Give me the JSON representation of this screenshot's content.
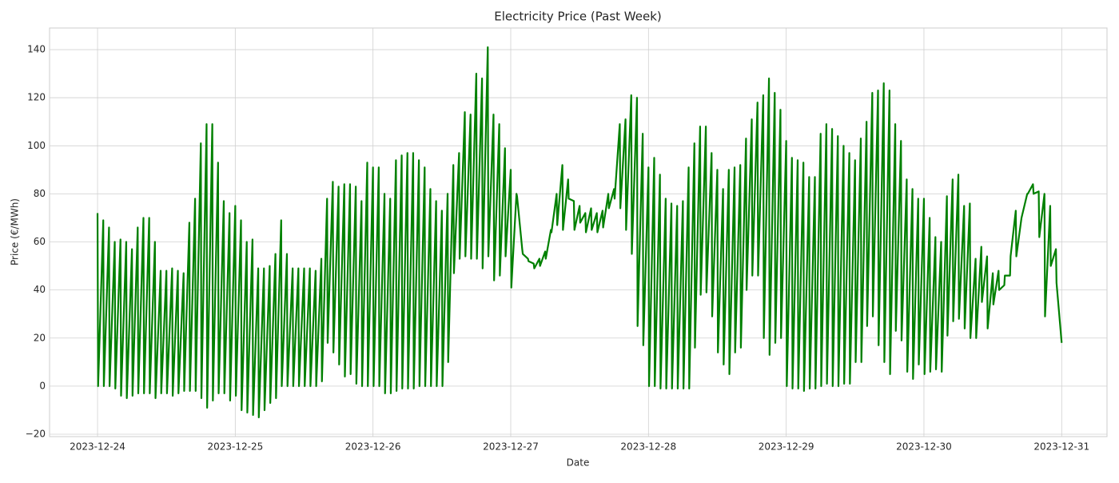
{
  "chart_data": {
    "type": "line",
    "title": "Electricity Price (Past Week)",
    "x_label": "Date",
    "y_label": "Price (€/MWh)",
    "xlim": [
      -8.36,
      175.9
    ],
    "ylim": [
      -21,
      149
    ],
    "xticks": [
      {
        "value": 0,
        "label": "2023-12-24"
      },
      {
        "value": 24,
        "label": "2023-12-25"
      },
      {
        "value": 48,
        "label": "2023-12-26"
      },
      {
        "value": 72,
        "label": "2023-12-27"
      },
      {
        "value": 96,
        "label": "2023-12-28"
      },
      {
        "value": 120,
        "label": "2023-12-29"
      },
      {
        "value": 144,
        "label": "2023-12-30"
      },
      {
        "value": 168,
        "label": "2023-12-31"
      }
    ],
    "yticks": [
      {
        "value": -20,
        "label": "−20"
      },
      0,
      20,
      40,
      60,
      80,
      100,
      120,
      140
    ],
    "grid": true,
    "series": [
      {
        "color": "#008000",
        "x": [
          0,
          0.1,
          1,
          1.1,
          2,
          2.1,
          3,
          3.1,
          4,
          4.1,
          5,
          5.1,
          6,
          6.1,
          7,
          7.1,
          8,
          8.1,
          9,
          9.1,
          10,
          10.1,
          11,
          11.1,
          12,
          12.1,
          13,
          13.1,
          14,
          14.1,
          15,
          15.1,
          16,
          16.1,
          17,
          17.1,
          18,
          18.1,
          19,
          19.1,
          20,
          20.1,
          21,
          21.1,
          22,
          22.1,
          23,
          23.1,
          24,
          24.1,
          25,
          25.1,
          26,
          26.1,
          27,
          27.1,
          28,
          28.1,
          29,
          29.1,
          30,
          30.1,
          31,
          31.1,
          32,
          32.1,
          33,
          33.1,
          34,
          34.1,
          35,
          35.1,
          36,
          36.1,
          37,
          37.1,
          38,
          38.1,
          39,
          39.1,
          40,
          40.1,
          41,
          41.1,
          42,
          42.1,
          43,
          43.1,
          44,
          44.1,
          45,
          45.1,
          46,
          46.1,
          47,
          47.1,
          48,
          48.1,
          49,
          49.1,
          50,
          50.1,
          51,
          51.1,
          52,
          52.1,
          53,
          53.1,
          54,
          54.1,
          55,
          55.1,
          56,
          56.1,
          57,
          57.1,
          58,
          58.1,
          59,
          59.1,
          60,
          60.1,
          61,
          61.1,
          62,
          62.1,
          63,
          63.1,
          64,
          64.1,
          65,
          65.1,
          66,
          66.1,
          67,
          67.1,
          68,
          68.1,
          69,
          69.1,
          70,
          70.1,
          71,
          71.1,
          72,
          72.1,
          73,
          73.1,
          74,
          74.1,
          75,
          75.1,
          76,
          76.1,
          77,
          77.1,
          78,
          78.1,
          79,
          79.1,
          80,
          80.1,
          81,
          81.1,
          82,
          82.1,
          83,
          83.1,
          84,
          84.1,
          85,
          85.1,
          86,
          86.1,
          87,
          87.1,
          88,
          88.1,
          89,
          89.1,
          90,
          90.1,
          91,
          91.1,
          92,
          92.1,
          93,
          93.1,
          94,
          94.1,
          95,
          95.1,
          96,
          96.1,
          97,
          97.1,
          98,
          98.1,
          99,
          99.1,
          100,
          100.1,
          101,
          101.1,
          102,
          102.1,
          103,
          103.1,
          104,
          104.1,
          105,
          105.1,
          106,
          106.1,
          107,
          107.1,
          108,
          108.1,
          109,
          109.1,
          110,
          110.1,
          111,
          111.1,
          112,
          112.1,
          113,
          113.1,
          114,
          114.1,
          115,
          115.1,
          116,
          116.1,
          117,
          117.1,
          118,
          118.1,
          119,
          119.1,
          120,
          120.1,
          121,
          121.1,
          122,
          122.1,
          123,
          123.1,
          124,
          124.1,
          125,
          125.1,
          126,
          126.1,
          127,
          127.1,
          128,
          128.1,
          129,
          129.1,
          130,
          130.1,
          131,
          131.1,
          132,
          132.1,
          133,
          133.1,
          134,
          134.1,
          135,
          135.1,
          136,
          136.1,
          137,
          137.1,
          138,
          138.1,
          139,
          139.1,
          140,
          140.1,
          141,
          141.1,
          142,
          142.1,
          143,
          143.1,
          144,
          144.1,
          145,
          145.1,
          146,
          146.1,
          147,
          147.1,
          148,
          148.1,
          149,
          149.1,
          150,
          150.1,
          151,
          151.1,
          152,
          152.1,
          153,
          153.1,
          154,
          154.1,
          155,
          155.1,
          156,
          156.1,
          157,
          157.1,
          158,
          158.1,
          159,
          159.1,
          160,
          160.1,
          161,
          161.1,
          162,
          162.1,
          163,
          163.1,
          164,
          164.1,
          165,
          165.1,
          166,
          166.1,
          167,
          167.1,
          168
        ],
        "values": [
          72,
          0,
          69,
          0,
          66,
          0,
          60,
          -1,
          61,
          -4,
          60,
          -5,
          57,
          -4,
          66,
          -3,
          70,
          -3,
          70,
          -3,
          60,
          -5,
          48,
          -3,
          48,
          -3,
          49,
          -4,
          48,
          -3,
          47,
          -2,
          68,
          -2,
          78,
          -2,
          101,
          -5,
          109,
          -9,
          109,
          -6,
          93,
          -3,
          77,
          -3,
          72,
          -6,
          75,
          -4,
          69,
          -10,
          60,
          -11,
          61,
          -12,
          49,
          -13,
          49,
          -10,
          50,
          -7,
          55,
          -5,
          69,
          0,
          55,
          0,
          49,
          0,
          49,
          0,
          49,
          0,
          49,
          0,
          48,
          0,
          53,
          2,
          78,
          18,
          85,
          14,
          83,
          9,
          84,
          4,
          84,
          5,
          83,
          1,
          77,
          0,
          93,
          0,
          91,
          0,
          91,
          0,
          80,
          -3,
          78,
          -3,
          94,
          -2,
          96,
          -1,
          97,
          -1,
          97,
          -1,
          94,
          0,
          91,
          0,
          82,
          0,
          77,
          0,
          73,
          0,
          80,
          10,
          92,
          47,
          97,
          53,
          114,
          54,
          113,
          53,
          130,
          53,
          128,
          49,
          141,
          54,
          113,
          44,
          109,
          46,
          99,
          54,
          90,
          41,
          80,
          79,
          57,
          55,
          53,
          52,
          51,
          49,
          53,
          50,
          56,
          53,
          65,
          64,
          80,
          67,
          92,
          65,
          86,
          78,
          77,
          65,
          75,
          68,
          72,
          64,
          74,
          65,
          72,
          64,
          73,
          66,
          80,
          74,
          82,
          78,
          109,
          74,
          111,
          65,
          121,
          55,
          120,
          25,
          105,
          17,
          91,
          0,
          95,
          0,
          88,
          -1,
          78,
          -1,
          76,
          -1,
          75,
          -1,
          77,
          -1,
          91,
          -1,
          101,
          16,
          108,
          38,
          108,
          39,
          97,
          29,
          90,
          14,
          82,
          9,
          90,
          5,
          91,
          14,
          92,
          16,
          103,
          40,
          111,
          46,
          118,
          46,
          121,
          20,
          128,
          13,
          122,
          18,
          115,
          20,
          102,
          0,
          95,
          -1,
          94,
          -1,
          93,
          -2,
          87,
          -1,
          87,
          -1,
          105,
          0,
          109,
          1,
          107,
          0,
          104,
          0,
          100,
          1,
          97,
          1,
          94,
          10,
          103,
          10,
          110,
          25,
          122,
          29,
          123,
          17,
          126,
          10,
          123,
          5,
          109,
          23,
          102,
          19,
          86,
          6,
          82,
          3,
          78,
          9,
          78,
          5,
          70,
          6,
          62,
          7,
          60,
          6,
          79,
          21,
          86,
          27,
          88,
          28,
          75,
          24,
          76,
          20,
          53,
          20,
          58,
          35,
          54,
          24,
          47,
          34,
          48,
          40,
          42,
          46,
          46,
          54,
          73,
          54,
          70,
          71,
          80,
          80,
          84,
          80,
          81,
          62,
          80,
          29,
          75,
          50,
          57,
          43,
          18
        ]
      }
    ]
  }
}
